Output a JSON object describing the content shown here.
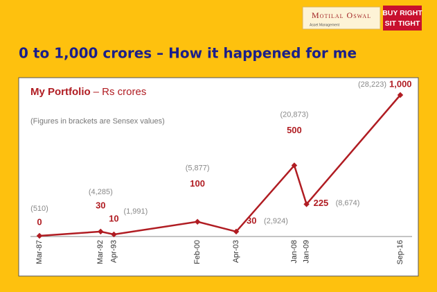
{
  "header": {
    "brand": "Motilal Oswal",
    "brand_sub": "Asset Management",
    "tag_line1": "BUY RIGHT",
    "tag_line2": "SIT TIGHT",
    "slide_title": "0 to 1,000 crores – How it happened for me"
  },
  "chart_data": {
    "type": "line",
    "title": "My Portfolio",
    "title_suffix": "– Rs crores",
    "subtitle": "(Figures in brackets are Sensex values)",
    "x": [
      "Mar-87",
      "Mar-92",
      "Apr-93",
      "Feb-00",
      "Apr-03",
      "Jan-08",
      "Jan-09",
      "Sep-16"
    ],
    "series": [
      {
        "color": "#b01c22",
        "values": [
          0,
          30,
          10,
          100,
          30,
          500,
          225,
          1000
        ],
        "value_labels": [
          "0",
          "30",
          "10",
          "100",
          "30",
          "500",
          "225",
          "1,000"
        ]
      }
    ],
    "sensex_labels": [
      "(510)",
      "(4,285)",
      "(1,991)",
      "(5,877)",
      "(2,924)",
      "(20,873)",
      "(8,674)",
      "(28,223)"
    ]
  }
}
